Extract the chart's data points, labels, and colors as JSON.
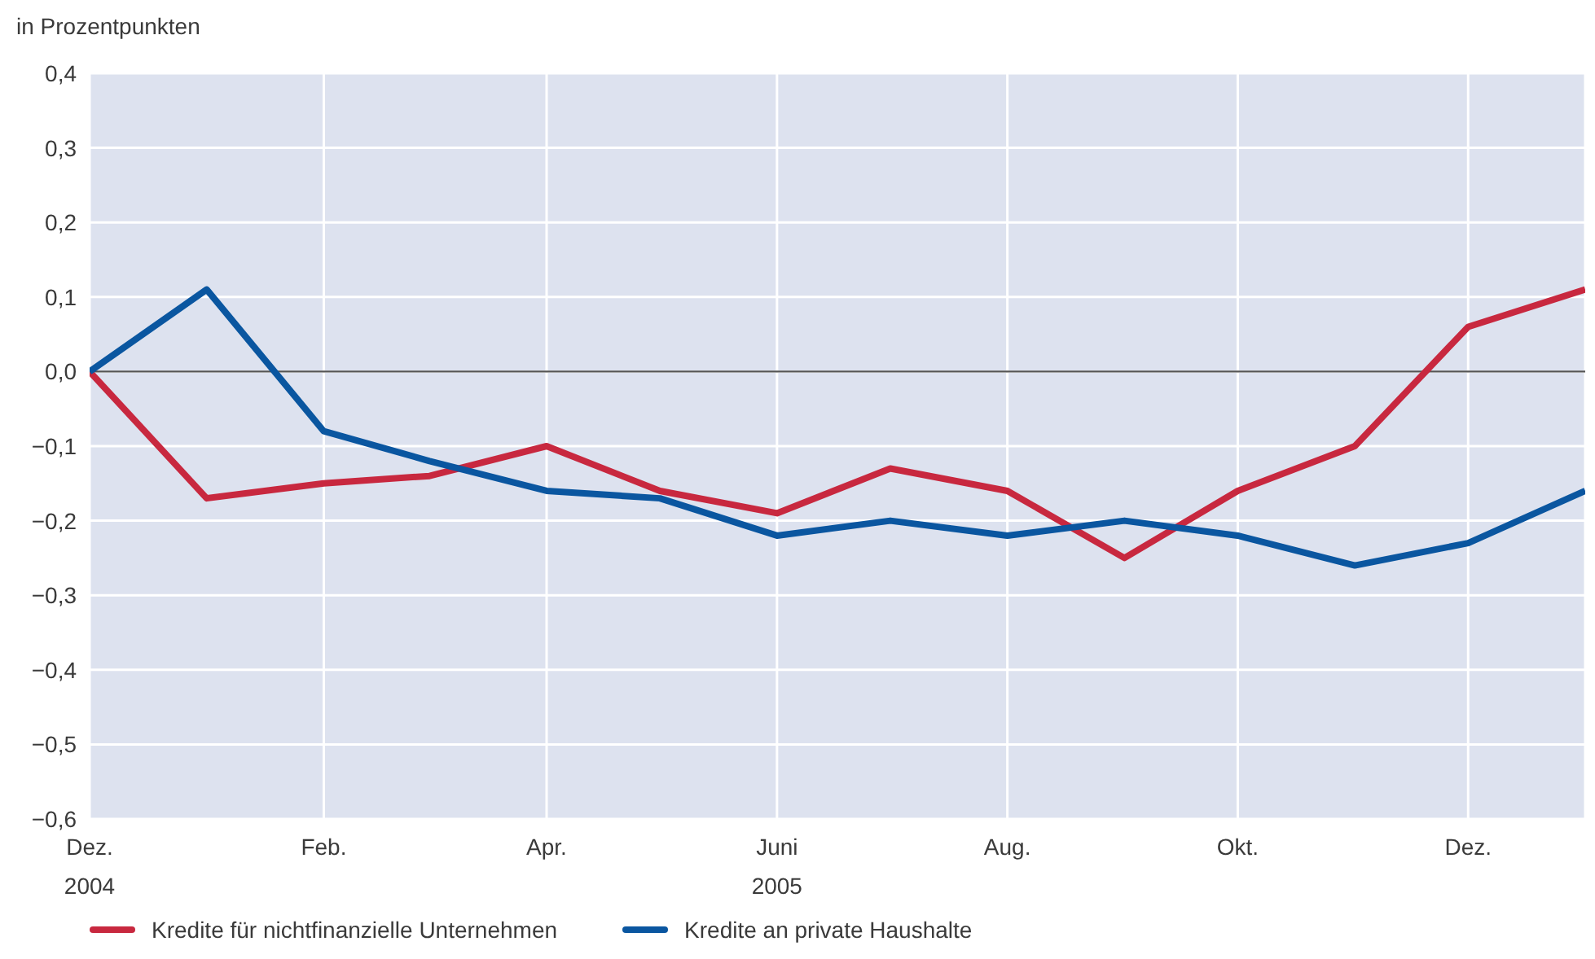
{
  "chart_data": {
    "type": "line",
    "ylabel": "in Prozentpunkten",
    "x": [
      "2004-12",
      "2005-01",
      "2005-02",
      "2005-03",
      "2005-04",
      "2005-05",
      "2005-06",
      "2005-07",
      "2005-08",
      "2005-09",
      "2005-10",
      "2005-11",
      "2005-12",
      "2006-01"
    ],
    "series": [
      {
        "name": "Kredite für nichtfinanzielle Unternehmen",
        "color": "#c8283f",
        "values": [
          0,
          -0.17,
          -0.15,
          -0.14,
          -0.1,
          -0.16,
          -0.19,
          -0.13,
          -0.16,
          -0.25,
          -0.16,
          -0.1,
          0.06,
          0.11
        ]
      },
      {
        "name": "Kredite an private Haushalte",
        "color": "#0a56a0",
        "values": [
          0,
          0.11,
          -0.08,
          -0.12,
          -0.16,
          -0.17,
          -0.22,
          -0.2,
          -0.22,
          -0.2,
          -0.22,
          -0.26,
          -0.23,
          -0.16
        ]
      }
    ],
    "xlim": [
      "2004-12",
      "2006-01"
    ],
    "xticks": [
      {
        "value": "2004-12",
        "label": "Dez.\n2004"
      },
      {
        "value": "2005-02",
        "label": "Feb."
      },
      {
        "value": "2005-04",
        "label": "Apr."
      },
      {
        "value": "2005-06",
        "label": "Juni\n2005"
      },
      {
        "value": "2005-08",
        "label": "Aug."
      },
      {
        "value": "2005-10",
        "label": "Okt."
      },
      {
        "value": "2005-12",
        "label": "Dez."
      }
    ],
    "ylim": [
      -0.6,
      0.4
    ],
    "yticks": [
      {
        "value": 0.4,
        "label": "0,4"
      },
      {
        "value": 0.3,
        "label": "0,3"
      },
      {
        "value": 0.2,
        "label": "0,2"
      },
      {
        "value": 0.1,
        "label": "0,1"
      },
      {
        "value": 0,
        "label": "0,0"
      },
      {
        "value": -0.1,
        "label": "−0,1"
      },
      {
        "value": -0.2,
        "label": "−0,2"
      },
      {
        "value": -0.3,
        "label": "−0,3"
      },
      {
        "value": -0.4,
        "label": "−0,4"
      },
      {
        "value": -0.5,
        "label": "−0,5"
      },
      {
        "value": -0.6,
        "label": "−0,6"
      }
    ],
    "ref_lines": [
      {
        "axis": "y",
        "value": 0,
        "color": "#555555"
      }
    ],
    "grid": true,
    "legend": "bottom",
    "marker": "none",
    "line_style": "solid"
  }
}
